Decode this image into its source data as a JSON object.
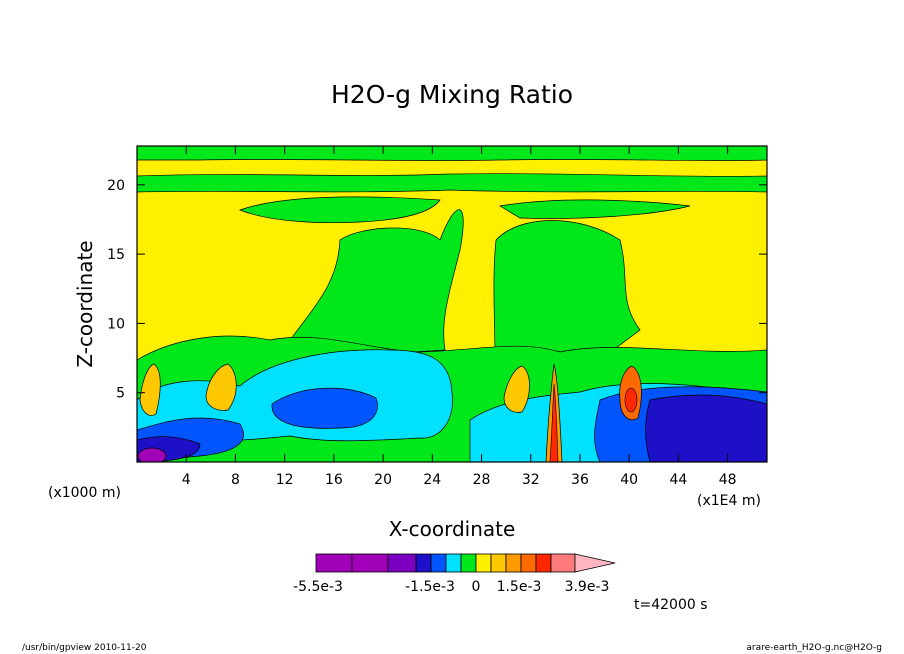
{
  "chart_data": {
    "type": "heatmap",
    "title": "H2O-g Mixing Ratio",
    "xlabel": "X-coordinate",
    "ylabel": "Z-coordinate",
    "x_unit_left": "(x1000 m)",
    "x_unit_right": "(x1E4 m)",
    "x_ticks": [
      "4",
      "8",
      "12",
      "16",
      "20",
      "24",
      "28",
      "32",
      "36",
      "40",
      "44",
      "48"
    ],
    "x_tick_values": [
      4,
      8,
      12,
      16,
      20,
      24,
      28,
      32,
      36,
      40,
      44,
      48
    ],
    "y_ticks": [
      "5",
      "10",
      "15",
      "20"
    ],
    "y_tick_values": [
      5,
      10,
      15,
      20
    ],
    "xlim": [
      0,
      51.2
    ],
    "ylim": [
      0,
      22.8
    ],
    "colorbar": {
      "labels": [
        "-5.5e-3",
        "-1.5e-3",
        "0",
        "1.5e-3",
        "3.9e-3"
      ],
      "colors": [
        "#a000b8",
        "#a000b8",
        "#7b00c2",
        "#1e10c6",
        "#0055ff",
        "#00e0ff",
        "#00e81a",
        "#fff000",
        "#ffc800",
        "#ff9a00",
        "#ff6a00",
        "#ff2800",
        "#ff7a7a",
        "#ffb6c1"
      ]
    },
    "time_label": "t=42000 s",
    "footer_left": "/usr/bin/gpview  2010-11-20",
    "footer_right": "arare-earth_H2O-g.nc@H2O-g"
  }
}
